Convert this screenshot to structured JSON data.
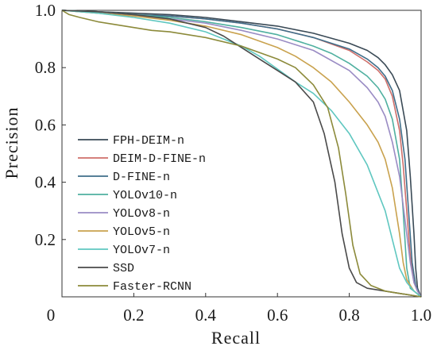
{
  "chart_data": {
    "type": "line",
    "title": "",
    "xlabel": "Recall",
    "ylabel": "Precision",
    "xlim": [
      0,
      1
    ],
    "ylim": [
      0,
      1
    ],
    "xticks": [
      "0",
      "0.2",
      "0.4",
      "0.6",
      "0.8",
      "1.0"
    ],
    "yticks": [
      "0.2",
      "0.4",
      "0.6",
      "0.8",
      "1.0"
    ],
    "grid": false,
    "legend_position": "lower-left",
    "series": [
      {
        "name": "FPH-DEIM-n",
        "color": "#3a4a56",
        "x": [
          0,
          0.1,
          0.2,
          0.3,
          0.4,
          0.5,
          0.6,
          0.7,
          0.8,
          0.85,
          0.88,
          0.9,
          0.92,
          0.94,
          0.96,
          0.97,
          0.98,
          0.985,
          0.99,
          1.0
        ],
        "y": [
          1.0,
          0.995,
          0.99,
          0.985,
          0.975,
          0.96,
          0.945,
          0.92,
          0.885,
          0.86,
          0.835,
          0.81,
          0.775,
          0.72,
          0.58,
          0.42,
          0.22,
          0.1,
          0.03,
          0.0
        ]
      },
      {
        "name": "DEIM-D-FINE-n",
        "color": "#cf6f6a",
        "x": [
          0,
          0.1,
          0.2,
          0.3,
          0.4,
          0.5,
          0.6,
          0.7,
          0.8,
          0.85,
          0.88,
          0.9,
          0.92,
          0.94,
          0.95,
          0.96,
          0.97,
          0.98,
          0.99,
          1.0
        ],
        "y": [
          1.0,
          0.995,
          0.985,
          0.98,
          0.97,
          0.955,
          0.935,
          0.905,
          0.86,
          0.82,
          0.79,
          0.76,
          0.7,
          0.58,
          0.46,
          0.3,
          0.14,
          0.05,
          0.02,
          0.0
        ]
      },
      {
        "name": "D-FINE-n",
        "color": "#3f6e8a",
        "x": [
          0,
          0.1,
          0.2,
          0.3,
          0.4,
          0.5,
          0.6,
          0.7,
          0.8,
          0.85,
          0.88,
          0.9,
          0.92,
          0.94,
          0.955,
          0.965,
          0.975,
          0.985,
          0.995,
          1.0
        ],
        "y": [
          1.0,
          0.995,
          0.985,
          0.98,
          0.97,
          0.955,
          0.935,
          0.905,
          0.865,
          0.83,
          0.8,
          0.77,
          0.72,
          0.62,
          0.48,
          0.3,
          0.12,
          0.04,
          0.01,
          0.0
        ]
      },
      {
        "name": "YOLOv10-n",
        "color": "#4fb0a0",
        "x": [
          0,
          0.1,
          0.2,
          0.3,
          0.4,
          0.5,
          0.6,
          0.7,
          0.75,
          0.8,
          0.85,
          0.88,
          0.9,
          0.92,
          0.94,
          0.95,
          0.96,
          0.97,
          0.98,
          1.0
        ],
        "y": [
          1.0,
          0.995,
          0.985,
          0.975,
          0.96,
          0.94,
          0.915,
          0.875,
          0.85,
          0.815,
          0.77,
          0.73,
          0.69,
          0.62,
          0.48,
          0.3,
          0.1,
          0.03,
          0.02,
          0.0
        ]
      },
      {
        "name": "YOLOv8-n",
        "color": "#9a8cc4",
        "x": [
          0,
          0.1,
          0.2,
          0.3,
          0.4,
          0.5,
          0.6,
          0.7,
          0.8,
          0.85,
          0.88,
          0.9,
          0.92,
          0.94,
          0.96,
          0.97,
          0.98,
          0.99,
          1.0
        ],
        "y": [
          1.0,
          0.99,
          0.98,
          0.97,
          0.955,
          0.93,
          0.9,
          0.86,
          0.79,
          0.73,
          0.68,
          0.63,
          0.54,
          0.42,
          0.22,
          0.12,
          0.05,
          0.02,
          0.0
        ]
      },
      {
        "name": "YOLOv5-n",
        "color": "#c9a24e",
        "x": [
          0,
          0.1,
          0.2,
          0.3,
          0.4,
          0.5,
          0.6,
          0.65,
          0.7,
          0.75,
          0.8,
          0.85,
          0.88,
          0.9,
          0.92,
          0.94,
          0.95,
          0.96,
          0.98,
          1.0
        ],
        "y": [
          1.0,
          0.99,
          0.98,
          0.965,
          0.945,
          0.915,
          0.87,
          0.84,
          0.8,
          0.75,
          0.68,
          0.6,
          0.54,
          0.48,
          0.38,
          0.22,
          0.12,
          0.06,
          0.02,
          0.0
        ]
      },
      {
        "name": "YOLOv7-n",
        "color": "#5fc7c0",
        "x": [
          0,
          0.1,
          0.2,
          0.3,
          0.4,
          0.5,
          0.55,
          0.6,
          0.65,
          0.7,
          0.75,
          0.8,
          0.85,
          0.9,
          0.92,
          0.94,
          0.96,
          0.98,
          1.0
        ],
        "y": [
          1.0,
          0.99,
          0.975,
          0.955,
          0.925,
          0.875,
          0.84,
          0.795,
          0.75,
          0.71,
          0.65,
          0.57,
          0.46,
          0.3,
          0.2,
          0.1,
          0.05,
          0.02,
          0.0
        ]
      },
      {
        "name": "SSD",
        "color": "#4a4a4a",
        "x": [
          0,
          0.1,
          0.2,
          0.3,
          0.4,
          0.45,
          0.5,
          0.55,
          0.6,
          0.65,
          0.7,
          0.73,
          0.76,
          0.78,
          0.8,
          0.82,
          0.85,
          0.9,
          0.95,
          1.0
        ],
        "y": [
          1.0,
          0.995,
          0.985,
          0.97,
          0.94,
          0.91,
          0.87,
          0.83,
          0.79,
          0.75,
          0.68,
          0.57,
          0.4,
          0.22,
          0.1,
          0.05,
          0.03,
          0.02,
          0.01,
          0.0
        ]
      },
      {
        "name": "Faster-RCNN",
        "color": "#8c8a3a",
        "x": [
          0,
          0.02,
          0.05,
          0.1,
          0.15,
          0.2,
          0.25,
          0.3,
          0.4,
          0.5,
          0.6,
          0.65,
          0.7,
          0.74,
          0.77,
          0.79,
          0.81,
          0.83,
          0.86,
          0.9,
          0.95,
          1.0
        ],
        "y": [
          1.0,
          0.985,
          0.975,
          0.96,
          0.95,
          0.94,
          0.93,
          0.925,
          0.905,
          0.875,
          0.83,
          0.8,
          0.74,
          0.66,
          0.52,
          0.36,
          0.18,
          0.08,
          0.04,
          0.02,
          0.01,
          0.0
        ]
      }
    ]
  }
}
